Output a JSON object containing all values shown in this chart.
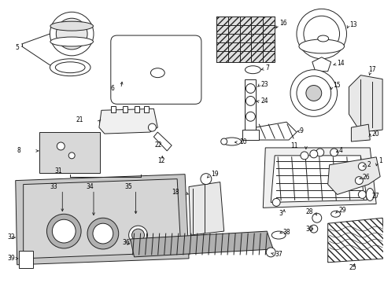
{
  "bg_color": "#ffffff",
  "lc": "#222222",
  "lw": 0.7,
  "fontsize": 5.5,
  "fig_w": 4.89,
  "fig_h": 3.6,
  "dpi": 100
}
